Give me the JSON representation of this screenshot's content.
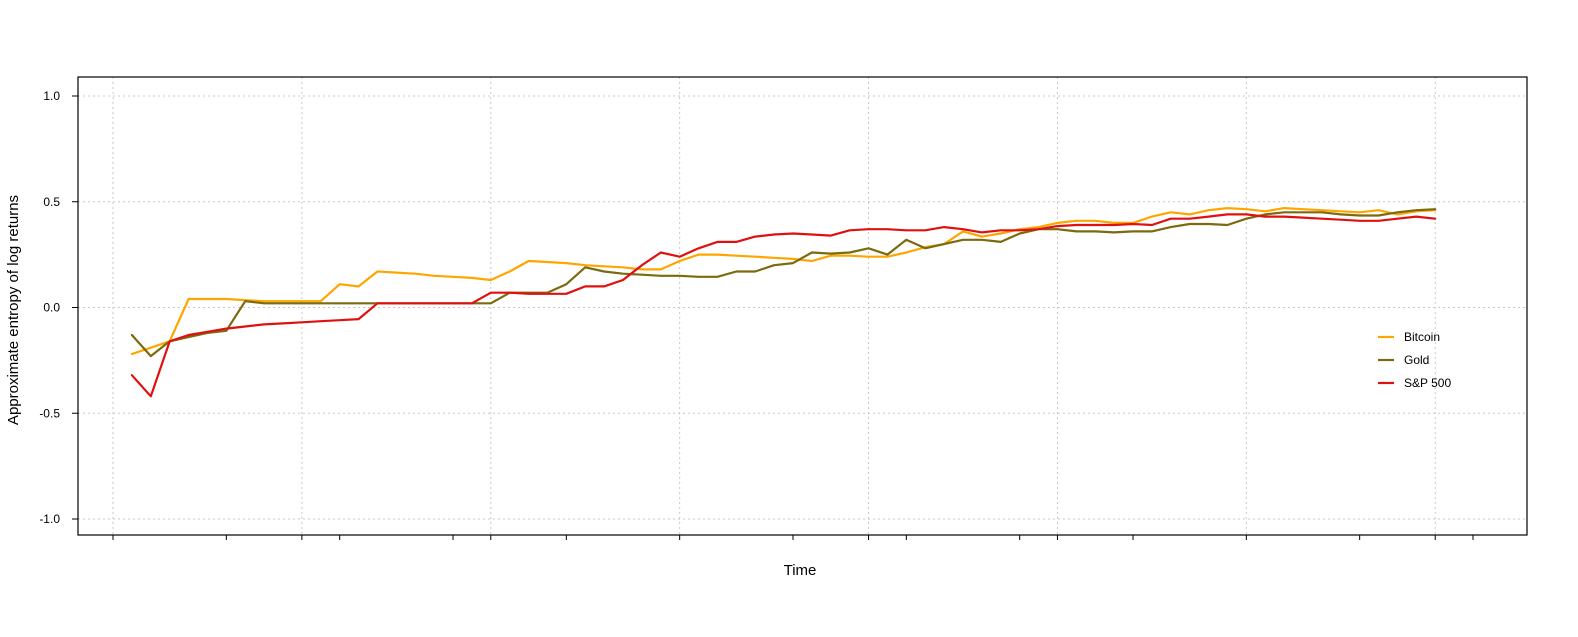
{
  "chart_data": {
    "type": "line",
    "title": "",
    "xlabel": "Time",
    "ylabel": "Approximate entropy of log returns",
    "xlim": [
      0,
      72
    ],
    "ylim": [
      -1.0,
      1.0
    ],
    "yticks": [
      -1.0,
      -0.5,
      0.0,
      0.5,
      1.0
    ],
    "ytick_labels": [
      "-1.0",
      "-0.5",
      "0.0",
      "0.5",
      "1.0"
    ],
    "xticks_major": [
      0,
      10,
      20,
      30,
      40,
      50,
      60,
      70
    ],
    "xticks_minor": [
      6,
      12,
      18,
      24,
      30,
      36,
      42,
      48,
      54,
      60,
      66,
      72
    ],
    "grid": true,
    "legend_position": "right",
    "x": [
      1,
      2,
      3,
      4,
      5,
      6,
      7,
      8,
      9,
      10,
      11,
      12,
      13,
      14,
      15,
      16,
      17,
      18,
      19,
      20,
      21,
      22,
      23,
      24,
      25,
      26,
      27,
      28,
      29,
      30,
      31,
      32,
      33,
      34,
      35,
      36,
      37,
      38,
      39,
      40,
      41,
      42,
      43,
      44,
      45,
      46,
      47,
      48,
      49,
      50,
      51,
      52,
      53,
      54,
      55,
      56,
      57,
      58,
      59,
      60,
      61,
      62,
      63,
      64,
      65,
      66,
      67,
      68,
      69,
      70
    ],
    "series": [
      {
        "name": "Bitcoin",
        "color": "#FFA500",
        "values": [
          -0.22,
          -0.19,
          -0.16,
          0.04,
          0.04,
          0.04,
          0.035,
          0.03,
          0.03,
          0.03,
          0.03,
          0.11,
          0.1,
          0.17,
          0.165,
          0.16,
          0.15,
          0.145,
          0.14,
          0.13,
          0.17,
          0.22,
          0.215,
          0.21,
          0.2,
          0.195,
          0.19,
          0.18,
          0.18,
          0.22,
          0.25,
          0.25,
          0.245,
          0.24,
          0.235,
          0.23,
          0.22,
          0.245,
          0.245,
          0.24,
          0.24,
          0.26,
          0.285,
          0.3,
          0.36,
          0.335,
          0.35,
          0.37,
          0.38,
          0.4,
          0.41,
          0.41,
          0.4,
          0.4,
          0.43,
          0.45,
          0.44,
          0.46,
          0.47,
          0.465,
          0.455,
          0.47,
          0.465,
          0.46,
          0.455,
          0.45,
          0.46,
          0.44,
          0.455,
          0.46
        ]
      },
      {
        "name": "Gold",
        "color": "#7B6A0E",
        "values": [
          -0.13,
          -0.23,
          -0.16,
          -0.14,
          -0.12,
          -0.11,
          0.03,
          0.02,
          0.02,
          0.02,
          0.02,
          0.02,
          0.02,
          0.02,
          0.02,
          0.02,
          0.02,
          0.02,
          0.02,
          0.02,
          0.07,
          0.07,
          0.07,
          0.11,
          0.19,
          0.17,
          0.16,
          0.155,
          0.15,
          0.15,
          0.145,
          0.145,
          0.17,
          0.17,
          0.2,
          0.21,
          0.26,
          0.255,
          0.26,
          0.28,
          0.25,
          0.32,
          0.28,
          0.3,
          0.32,
          0.32,
          0.31,
          0.35,
          0.37,
          0.37,
          0.36,
          0.36,
          0.355,
          0.36,
          0.36,
          0.38,
          0.395,
          0.395,
          0.39,
          0.42,
          0.44,
          0.45,
          0.45,
          0.45,
          0.44,
          0.435,
          0.435,
          0.45,
          0.46,
          0.465
        ]
      },
      {
        "name": "S&P 500",
        "color": "#E01010",
        "values": [
          -0.32,
          -0.42,
          -0.16,
          -0.13,
          -0.115,
          -0.1,
          -0.09,
          -0.08,
          -0.075,
          -0.07,
          -0.065,
          -0.06,
          -0.055,
          0.02,
          0.02,
          0.02,
          0.02,
          0.02,
          0.02,
          0.07,
          0.07,
          0.065,
          0.065,
          0.065,
          0.1,
          0.1,
          0.13,
          0.2,
          0.26,
          0.24,
          0.28,
          0.31,
          0.31,
          0.335,
          0.345,
          0.35,
          0.345,
          0.34,
          0.365,
          0.37,
          0.37,
          0.365,
          0.365,
          0.38,
          0.37,
          0.355,
          0.365,
          0.365,
          0.37,
          0.385,
          0.39,
          0.39,
          0.39,
          0.395,
          0.39,
          0.42,
          0.42,
          0.43,
          0.44,
          0.44,
          0.43,
          0.43,
          0.425,
          0.42,
          0.415,
          0.41,
          0.41,
          0.42,
          0.43,
          0.42
        ]
      }
    ]
  }
}
